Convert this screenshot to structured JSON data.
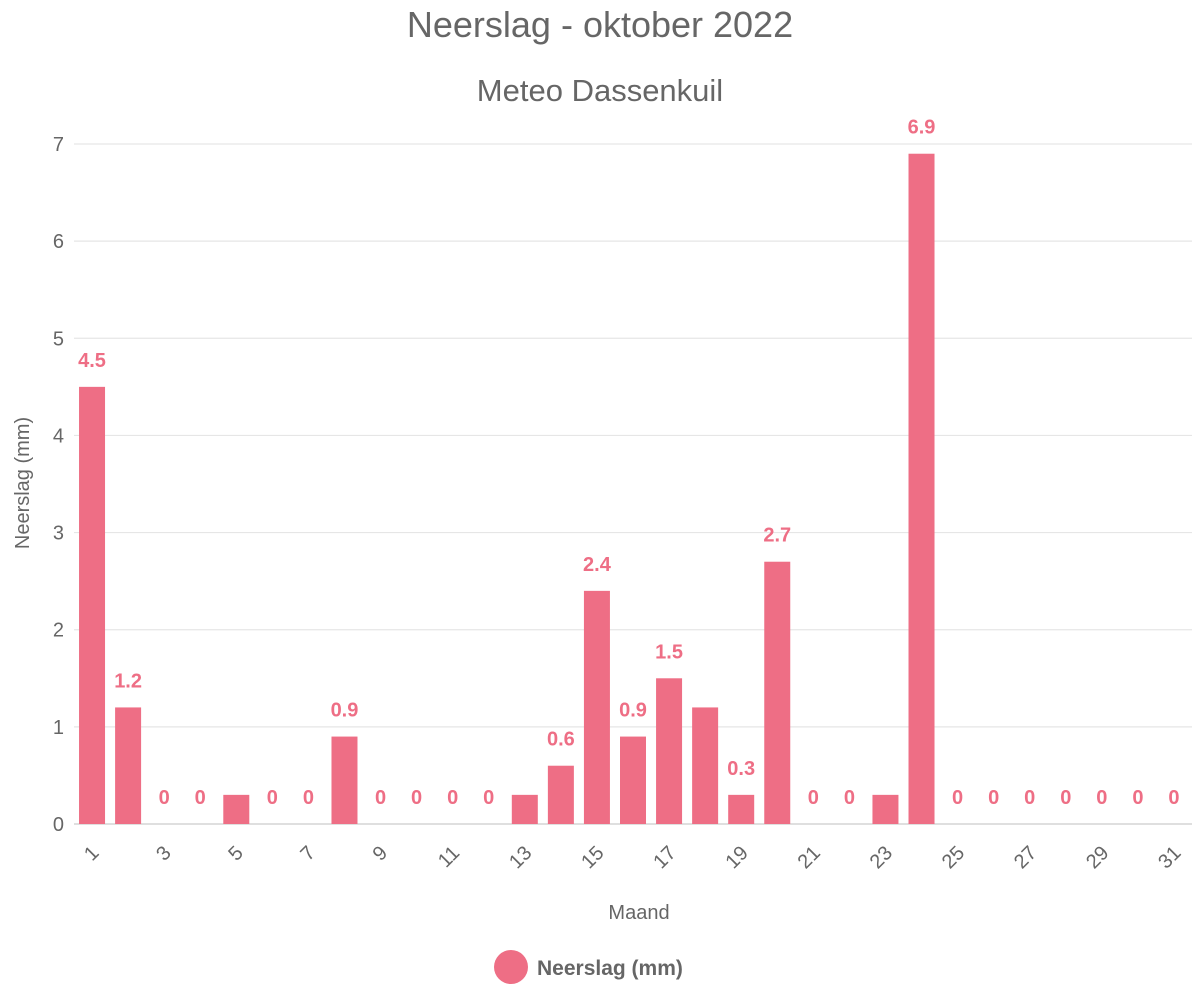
{
  "chart_data": {
    "type": "bar",
    "title": "Neerslag - oktober 2022",
    "subtitle": "Meteo Dassenkuil",
    "xlabel": "Maand",
    "ylabel": "Neerslag (mm)",
    "ylim": [
      0,
      7
    ],
    "yticks": [
      0,
      1,
      2,
      3,
      4,
      5,
      6,
      7
    ],
    "grid": true,
    "legend_position": "bottom",
    "categories": [
      "1",
      "2",
      "3",
      "4",
      "5",
      "6",
      "7",
      "8",
      "9",
      "10",
      "11",
      "12",
      "13",
      "14",
      "15",
      "16",
      "17",
      "18",
      "19",
      "20",
      "21",
      "22",
      "23",
      "24",
      "25",
      "26",
      "27",
      "28",
      "29",
      "30",
      "31"
    ],
    "x_tick_labels": [
      "1",
      "3",
      "5",
      "7",
      "9",
      "11",
      "13",
      "15",
      "17",
      "19",
      "21",
      "23",
      "25",
      "27",
      "29",
      "31"
    ],
    "series": [
      {
        "name": "Neerslag (mm)",
        "color": "#ee6e85",
        "values": [
          4.5,
          1.2,
          0,
          0,
          0.3,
          0,
          0,
          0.9,
          0,
          0,
          0,
          0,
          0.3,
          0.6,
          2.4,
          0.9,
          1.5,
          1.2,
          0.3,
          2.7,
          0,
          0,
          0.3,
          6.9,
          0,
          0,
          0,
          0,
          0,
          0,
          0
        ]
      }
    ],
    "data_labels": [
      "4.5",
      "1.2",
      "0",
      "0",
      "",
      "0",
      "0",
      "0.9",
      "0",
      "0",
      "0",
      "0",
      "",
      "0.6",
      "2.4",
      "0.9",
      "1.5",
      "",
      "0.3",
      "2.7",
      "0",
      "0",
      "",
      "6.9",
      "0",
      "0",
      "0",
      "0",
      "0",
      "0",
      "0"
    ]
  }
}
